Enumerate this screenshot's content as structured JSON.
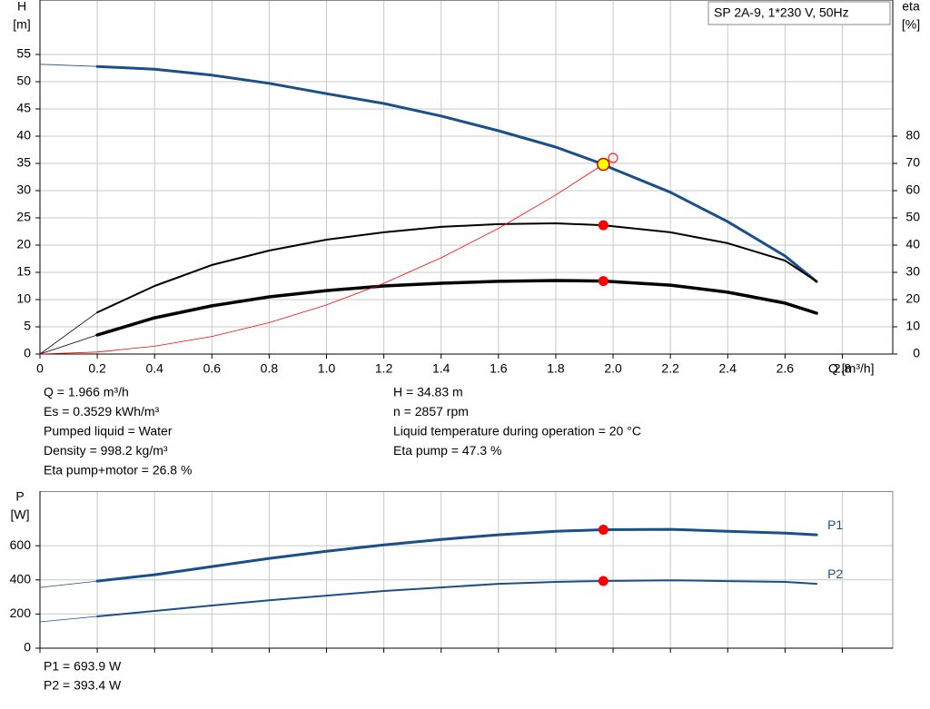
{
  "chart_data": [
    {
      "type": "line",
      "title": "SP 2A-9, 1*230 V, 50Hz",
      "x_label": "Q [m³/h]",
      "y_label": [
        "H",
        "[m]"
      ],
      "y2_label": [
        "eta",
        "[%]"
      ],
      "xlim": [
        0,
        2.976
      ],
      "xticks": [
        0,
        0.2,
        0.4,
        0.6,
        0.8,
        {
          "value": 1,
          "label": "1.0"
        },
        1.2,
        1.4,
        1.6,
        1.8,
        {
          "value": 2,
          "label": "2.0"
        },
        2.2,
        2.4,
        2.6,
        2.8
      ],
      "ylim": [
        0,
        65
      ],
      "yticks": [
        0,
        5,
        10,
        15,
        20,
        25,
        30,
        35,
        40,
        45,
        50,
        55
      ],
      "y2lim": [
        0,
        130
      ],
      "y2ticks": [
        0,
        10,
        20,
        30,
        40,
        50,
        60,
        70,
        80
      ],
      "grid": true,
      "xtick_labels": true,
      "series": [
        {
          "color": "#1a4f8a",
          "line_width": 0.8,
          "x": [
            0,
            0.2
          ],
          "values": [
            53.2,
            52.8
          ]
        },
        {
          "color": "#1a4f8a",
          "line_width": 3,
          "x": [
            0.2,
            0.4,
            0.6,
            0.8,
            1.0,
            1.2,
            1.4,
            1.6,
            1.8,
            1.966,
            2.0,
            2.2,
            2.4,
            2.6,
            2.71
          ],
          "values": [
            52.8,
            52.3,
            51.2,
            49.7,
            47.8,
            46,
            43.7,
            41,
            38,
            34.83,
            34,
            29.7,
            24.3,
            18,
            13.3
          ]
        },
        {
          "color": "#000000",
          "line_width": 0.8,
          "axis": "y2",
          "x": [
            0,
            0.2
          ],
          "values": [
            0,
            15.3
          ]
        },
        {
          "color": "#000000",
          "line_width": 2,
          "axis": "y2",
          "x": [
            0.2,
            0.4,
            0.6,
            0.8,
            1.0,
            1.2,
            1.4,
            1.6,
            1.8,
            1.966,
            2.2,
            2.4,
            2.6,
            2.71
          ],
          "values": [
            15.3,
            25,
            32.7,
            38,
            42,
            44.7,
            46.7,
            47.7,
            48,
            47.3,
            44.7,
            40.7,
            34.3,
            26.7
          ]
        },
        {
          "color": "#000000",
          "line_width": 0.8,
          "axis": "y2",
          "x": [
            0,
            0.2
          ],
          "values": [
            0,
            7
          ]
        },
        {
          "color": "#000000",
          "line_width": 3.5,
          "axis": "y2",
          "x": [
            0.2,
            0.4,
            0.6,
            0.8,
            1.0,
            1.2,
            1.4,
            1.6,
            1.8,
            1.966,
            2.2,
            2.4,
            2.6,
            2.71
          ],
          "values": [
            7,
            13.3,
            17.7,
            21,
            23.3,
            25,
            26,
            26.7,
            27,
            26.8,
            25.3,
            22.7,
            18.7,
            15
          ]
        },
        {
          "color": "#ff0000",
          "line_width": 0.8,
          "x": [
            0,
            0.2,
            0.4,
            0.6,
            0.8,
            1.0,
            1.2,
            1.4,
            1.6,
            1.8,
            1.966
          ],
          "values": [
            0,
            0.36,
            1.44,
            3.24,
            5.77,
            9.01,
            12.98,
            17.66,
            23.07,
            29.2,
            34.83
          ]
        }
      ],
      "points": [
        {
          "x": 2.0,
          "y": 36,
          "color": "#ff0000",
          "open": true
        },
        {
          "x": 1.966,
          "y": 34.83,
          "color": "#ffff00"
        },
        {
          "x": 1.966,
          "y": 47.3,
          "axis": "y2",
          "color": "#ff0000"
        },
        {
          "x": 1.966,
          "y": 26.8,
          "axis": "y2",
          "color": "#ff0000"
        }
      ]
    },
    {
      "type": "line",
      "y_label": [
        "P",
        "[W]"
      ],
      "xlim": [
        0,
        2.976
      ],
      "xticks": [
        0,
        0.2,
        0.4,
        0.6,
        0.8,
        1,
        1.2,
        1.4,
        1.6,
        1.8,
        2,
        2.2,
        2.4,
        2.6,
        2.8
      ],
      "xtick_labels": false,
      "ylim": [
        0,
        920
      ],
      "yticks": [
        0,
        200,
        400,
        600
      ],
      "grid": true,
      "series": [
        {
          "color": "#1a4f8a",
          "line_width": 0.8,
          "x": [
            0,
            0.2
          ],
          "values": [
            356,
            393
          ]
        },
        {
          "name": "P1",
          "color": "#1a4f8a",
          "line_width": 3,
          "x": [
            0.2,
            0.4,
            0.6,
            0.8,
            1.0,
            1.2,
            1.4,
            1.6,
            1.8,
            1.966,
            2.2,
            2.4,
            2.6,
            2.71
          ],
          "values": [
            393,
            430,
            478,
            526,
            568,
            605,
            637,
            664,
            685,
            693.9,
            696,
            685,
            674,
            664
          ]
        },
        {
          "color": "#1a4f8a",
          "line_width": 0.8,
          "x": [
            0,
            0.2
          ],
          "values": [
            154,
            186
          ]
        },
        {
          "name": "P2",
          "color": "#1a4f8a",
          "line_width": 2,
          "x": [
            0.2,
            0.4,
            0.6,
            0.8,
            1.0,
            1.2,
            1.4,
            1.6,
            1.8,
            1.966,
            2.2,
            2.4,
            2.6,
            2.71
          ],
          "values": [
            186,
            218,
            250,
            281,
            308,
            335,
            356,
            377,
            388,
            393.4,
            398,
            393,
            388,
            377
          ]
        }
      ],
      "points": [
        {
          "x": 1.966,
          "y": 693.9,
          "color": "#ff0000"
        },
        {
          "x": 1.966,
          "y": 393.4,
          "color": "#ff0000"
        }
      ]
    }
  ],
  "readouts": {
    "left": [
      "Q = 1.966 m³/h",
      "Es = 0.3529 kWh/m³",
      "Pumped liquid = Water",
      "Density = 998.2 kg/m³",
      "Eta pump+motor = 26.8 %"
    ],
    "right": [
      "H = 34.83 m",
      "n = 2857 rpm",
      "Liquid temperature during operation = 20 °C",
      "Eta pump = 47.3 %"
    ],
    "power": [
      "P1 = 693.9 W",
      "P2 = 393.4 W"
    ]
  }
}
